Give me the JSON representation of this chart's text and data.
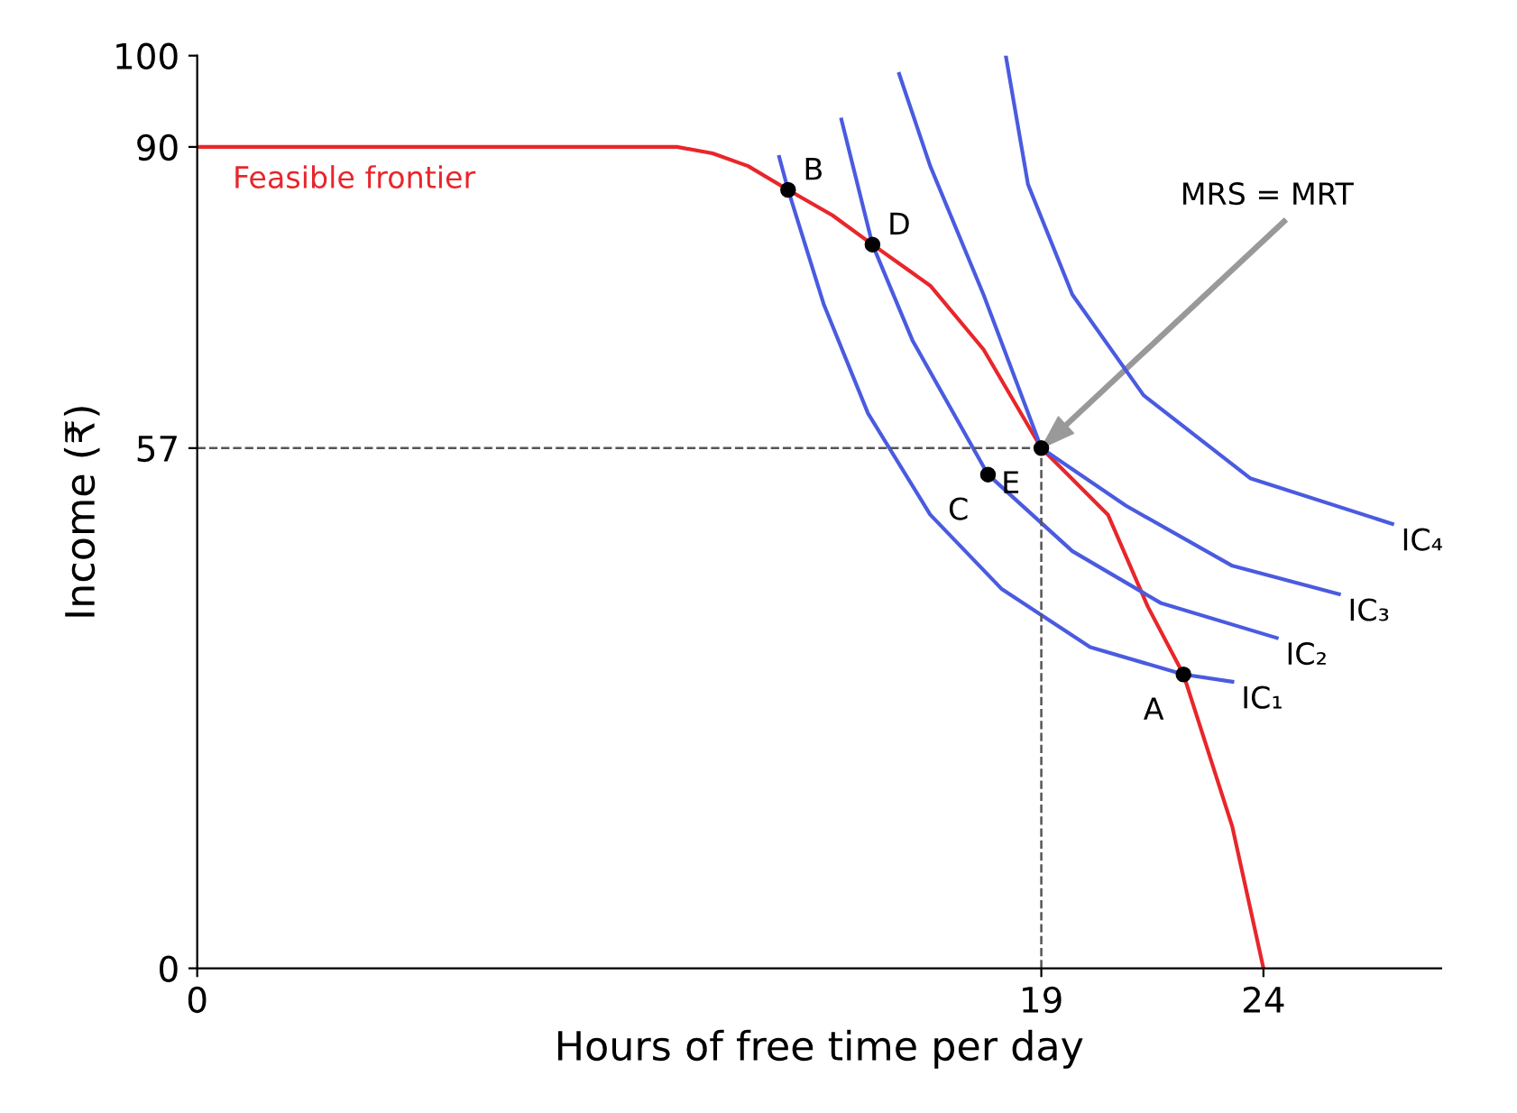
{
  "chart_data": {
    "type": "line",
    "xlabel": "Hours of free time per day",
    "ylabel": "Income (₹)",
    "xlim": [
      0,
      28
    ],
    "ylim": [
      0,
      100
    ],
    "xticks": [
      0,
      19,
      24
    ],
    "yticks": [
      0,
      57,
      90,
      100
    ],
    "grid": false,
    "marker": "none",
    "line_style": "solid",
    "series": [
      {
        "name": "Feasible frontier",
        "color": "#e8262b",
        "x": [
          0,
          8,
          10.8,
          11.6,
          12.4,
          13.3,
          14.3,
          15.2,
          16.5,
          17.7,
          19,
          20.5,
          21.4,
          22.2,
          23.3,
          24
        ],
        "values": [
          90,
          90,
          90,
          89.3,
          87.9,
          85.3,
          82.5,
          79.3,
          74.8,
          67.8,
          57,
          49.7,
          39.6,
          32.2,
          15.5,
          0
        ]
      },
      {
        "name": "IC₁",
        "color": "#4a5be0",
        "x": [
          13.1,
          13.3,
          14.1,
          15.1,
          16.5,
          18.1,
          20.1,
          22.2,
          23.3
        ],
        "values": [
          88.9,
          85.3,
          72.8,
          60.8,
          49.7,
          41.6,
          35.2,
          32.2,
          31.4
        ]
      },
      {
        "name": "IC₂",
        "color": "#4a5be0",
        "x": [
          14.5,
          15.2,
          16.1,
          17.8,
          19.7,
          21.7,
          24.3
        ],
        "values": [
          93,
          79.3,
          68.8,
          54.1,
          45.7,
          40,
          36.2
        ]
      },
      {
        "name": "IC₃",
        "color": "#4a5be0",
        "x": [
          15.8,
          16.5,
          17.7,
          19,
          20.9,
          23.3,
          25.7
        ],
        "values": [
          98,
          87.9,
          73.8,
          57,
          50.7,
          44.1,
          41
        ]
      },
      {
        "name": "IC₄",
        "color": "#4a5be0",
        "x": [
          18.2,
          18.7,
          19.7,
          21.3,
          23.7,
          26.9
        ],
        "values": [
          100,
          85.9,
          73.8,
          62.8,
          53.7,
          48.7
        ]
      },
      {
        "type": "scatter",
        "marker": "circle",
        "color": "#000000",
        "x": [
          13.3,
          15.2,
          19,
          17.8,
          22.2
        ],
        "values": [
          85.3,
          79.3,
          57,
          54.1,
          32.2
        ]
      }
    ],
    "ref_lines": [
      {
        "axis": "x",
        "value": 19,
        "color": "#555555",
        "line_style": "dashed"
      },
      {
        "axis": "y",
        "value": 57,
        "color": "#555555",
        "line_style": "dashed"
      }
    ],
    "annotations": [
      {
        "text": "B",
        "x": 13.3,
        "y": 85.3
      },
      {
        "text": "D",
        "x": 15.2,
        "y": 79.3
      },
      {
        "text": "E",
        "x": 19,
        "y": 57
      },
      {
        "text": "C",
        "x": 17.8,
        "y": 54.1
      },
      {
        "text": "A",
        "x": 22.2,
        "y": 32.2
      },
      "MRS = MRT"
    ]
  }
}
